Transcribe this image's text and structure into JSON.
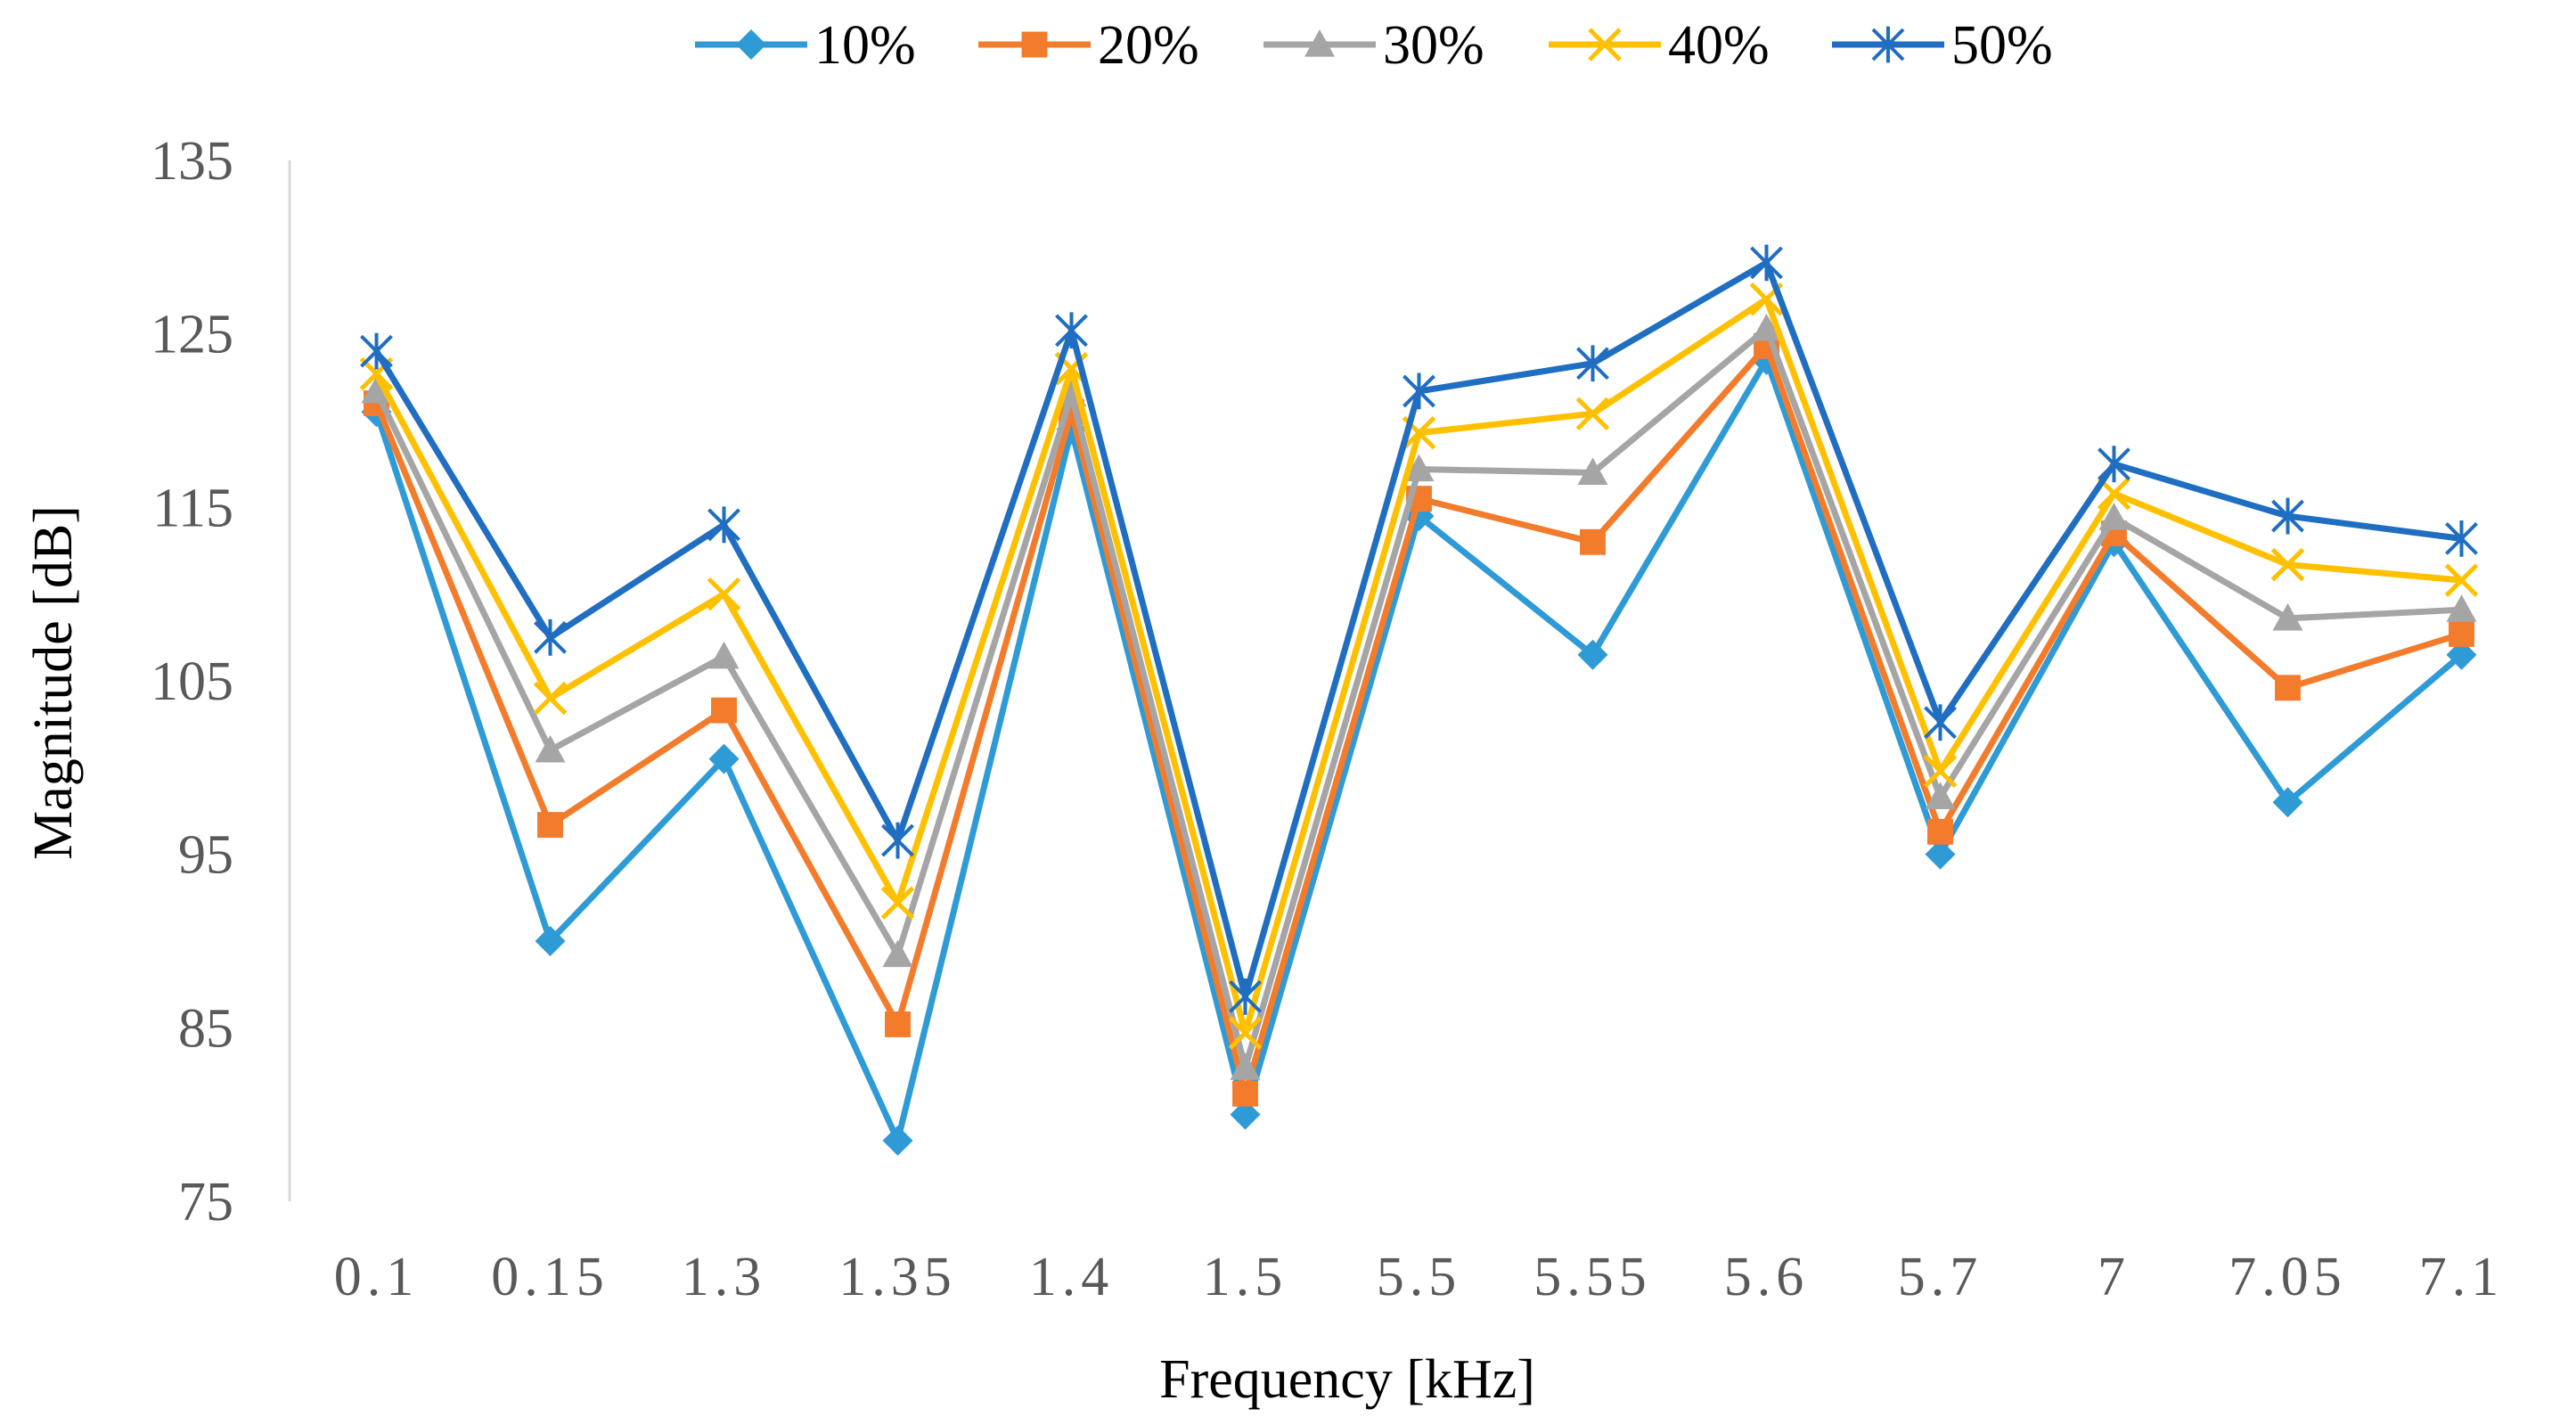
{
  "chart_data": {
    "type": "line",
    "title": "",
    "xlabel": "Frequency [kHz]",
    "ylabel": "Magnitude [dB]",
    "categories": [
      "0.1",
      "0.15",
      "1.3",
      "1.35",
      "1.4",
      "1.5",
      "5.5",
      "5.55",
      "5.6",
      "5.7",
      "7",
      "7.05",
      "7.1"
    ],
    "ylim": [
      75,
      135
    ],
    "yticks": [
      75,
      85,
      95,
      105,
      115,
      125,
      135
    ],
    "legend_position": "top-center",
    "series": [
      {
        "name": "10%",
        "color": "#2E9BD6",
        "marker": "diamond",
        "values": [
          120.5,
          90.0,
          100.5,
          78.5,
          119.5,
          80.0,
          114.5,
          106.5,
          123.5,
          95.0,
          113.0,
          98.0,
          106.5
        ]
      },
      {
        "name": "20%",
        "color": "#F37B2C",
        "marker": "square",
        "values": [
          121.0,
          96.7,
          103.3,
          85.2,
          120.5,
          81.2,
          115.5,
          113.0,
          124.3,
          96.3,
          113.5,
          104.6,
          107.7
        ]
      },
      {
        "name": "30%",
        "color": "#A5A5A5",
        "marker": "triangle",
        "values": [
          121.7,
          101.0,
          106.4,
          89.2,
          121.5,
          82.7,
          117.2,
          117.0,
          125.3,
          98.3,
          114.4,
          108.6,
          109.1
        ]
      },
      {
        "name": "40%",
        "color": "#FFC000",
        "marker": "x",
        "values": [
          122.7,
          104.0,
          110.0,
          92.2,
          123.0,
          84.7,
          119.3,
          120.4,
          127.0,
          99.8,
          115.8,
          111.7,
          110.8
        ]
      },
      {
        "name": "50%",
        "color": "#1F6EC1",
        "marker": "star",
        "values": [
          124.0,
          107.5,
          114.0,
          95.8,
          125.2,
          86.8,
          121.7,
          123.3,
          129.1,
          102.6,
          117.5,
          114.5,
          113.2
        ]
      }
    ]
  }
}
